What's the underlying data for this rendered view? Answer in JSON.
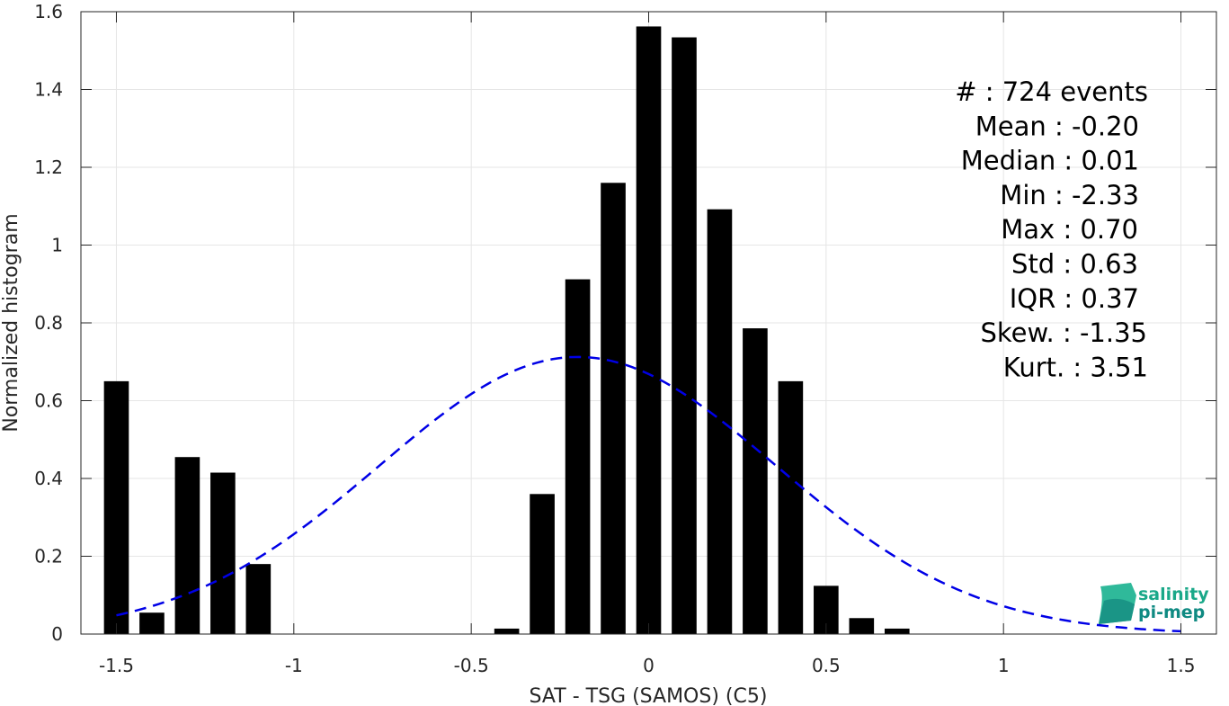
{
  "chart_data": {
    "type": "bar",
    "xlabel": "SAT - TSG (SAMOS) (C5)",
    "ylabel": "Normalized histogram",
    "xlim": [
      -1.6,
      1.6
    ],
    "ylim": [
      0,
      1.6
    ],
    "xticks": [
      -1.5,
      -1,
      -0.5,
      0,
      0.5,
      1,
      1.5
    ],
    "xtick_labels": [
      "-1.5",
      "-1",
      "-0.5",
      "0",
      "0.5",
      "1",
      "1.5"
    ],
    "yticks": [
      0,
      0.2,
      0.4,
      0.6,
      0.8,
      1,
      1.2,
      1.4,
      1.6
    ],
    "ytick_labels": [
      "0",
      "0.2",
      "0.4",
      "0.6",
      "0.8",
      "1",
      "1.2",
      "1.4",
      "1.6"
    ],
    "grid": true,
    "bar_color": "#000000",
    "bar_width": 0.07,
    "bars": [
      {
        "x": -1.5,
        "value": 0.65
      },
      {
        "x": -1.4,
        "value": 0.055
      },
      {
        "x": -1.3,
        "value": 0.455
      },
      {
        "x": -1.2,
        "value": 0.415
      },
      {
        "x": -1.1,
        "value": 0.18
      },
      {
        "x": -1.0,
        "value": 0
      },
      {
        "x": -0.9,
        "value": 0
      },
      {
        "x": -0.8,
        "value": 0
      },
      {
        "x": -0.7,
        "value": 0
      },
      {
        "x": -0.6,
        "value": 0
      },
      {
        "x": -0.5,
        "value": 0
      },
      {
        "x": -0.4,
        "value": 0.014
      },
      {
        "x": -0.3,
        "value": 0.36
      },
      {
        "x": -0.2,
        "value": 0.912
      },
      {
        "x": -0.1,
        "value": 1.16
      },
      {
        "x": 0.0,
        "value": 1.562
      },
      {
        "x": 0.1,
        "value": 1.534
      },
      {
        "x": 0.2,
        "value": 1.092
      },
      {
        "x": 0.3,
        "value": 0.786
      },
      {
        "x": 0.4,
        "value": 0.65
      },
      {
        "x": 0.5,
        "value": 0.124
      },
      {
        "x": 0.6,
        "value": 0.041
      },
      {
        "x": 0.7,
        "value": 0.014
      }
    ],
    "fit_curve": {
      "type": "gaussian",
      "mean": -0.2,
      "std": 0.56,
      "x_range": [
        -1.5,
        1.5
      ],
      "color": "#0000e6",
      "style": "dashed"
    },
    "annotation_lines": [
      "#  : 724 events",
      "Mean : -0.20",
      "Median : 0.01",
      "Min : -2.33",
      "Max : 0.70",
      "Std : 0.63",
      "IQR : 0.37",
      "Skew. : -1.35",
      "Kurt. : 3.51"
    ]
  },
  "logo": {
    "line1": "salinity",
    "line2": "pi-mep",
    "color1": "#1aa889",
    "color2": "#0f8a82"
  }
}
